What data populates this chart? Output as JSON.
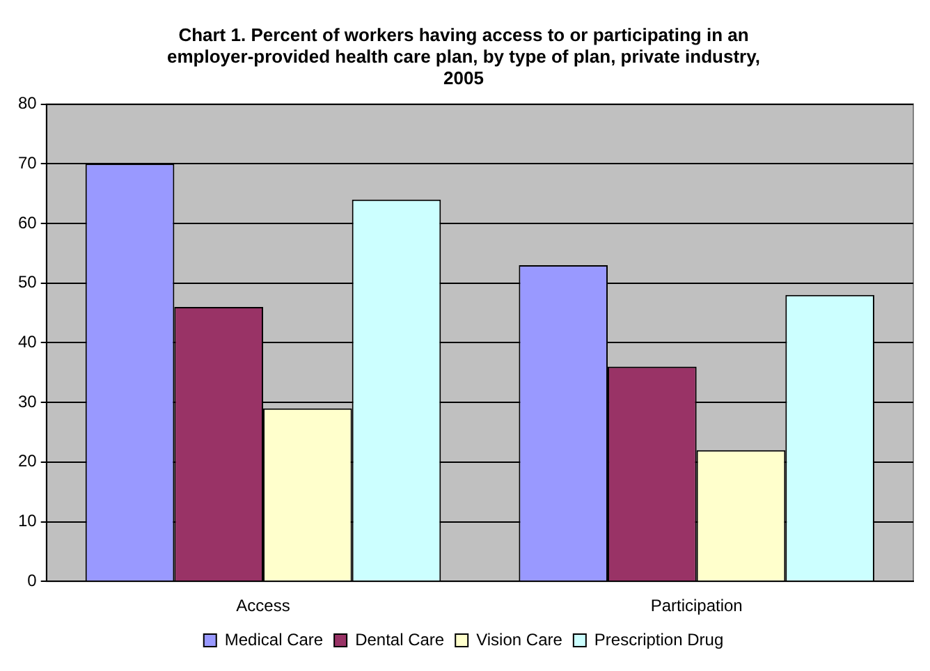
{
  "chart_data": {
    "type": "bar",
    "title": "Chart 1.  Percent of workers having access to or participating in an employer-provided health care plan, by type of plan, private industry, 2005",
    "categories": [
      "Access",
      "Participation"
    ],
    "series": [
      {
        "name": "Medical Care",
        "color": "#9999ff",
        "values": [
          70,
          53
        ]
      },
      {
        "name": "Dental Care",
        "color": "#993366",
        "values": [
          46,
          36
        ]
      },
      {
        "name": "Vision Care",
        "color": "#ffffcc",
        "values": [
          29,
          22
        ]
      },
      {
        "name": "Prescription Drug",
        "color": "#ccffff",
        "values": [
          64,
          48
        ]
      }
    ],
    "ylim": [
      0,
      80
    ],
    "yticks": [
      0,
      10,
      20,
      30,
      40,
      50,
      60,
      70,
      80
    ],
    "grid": "y",
    "legend": "bottom"
  }
}
